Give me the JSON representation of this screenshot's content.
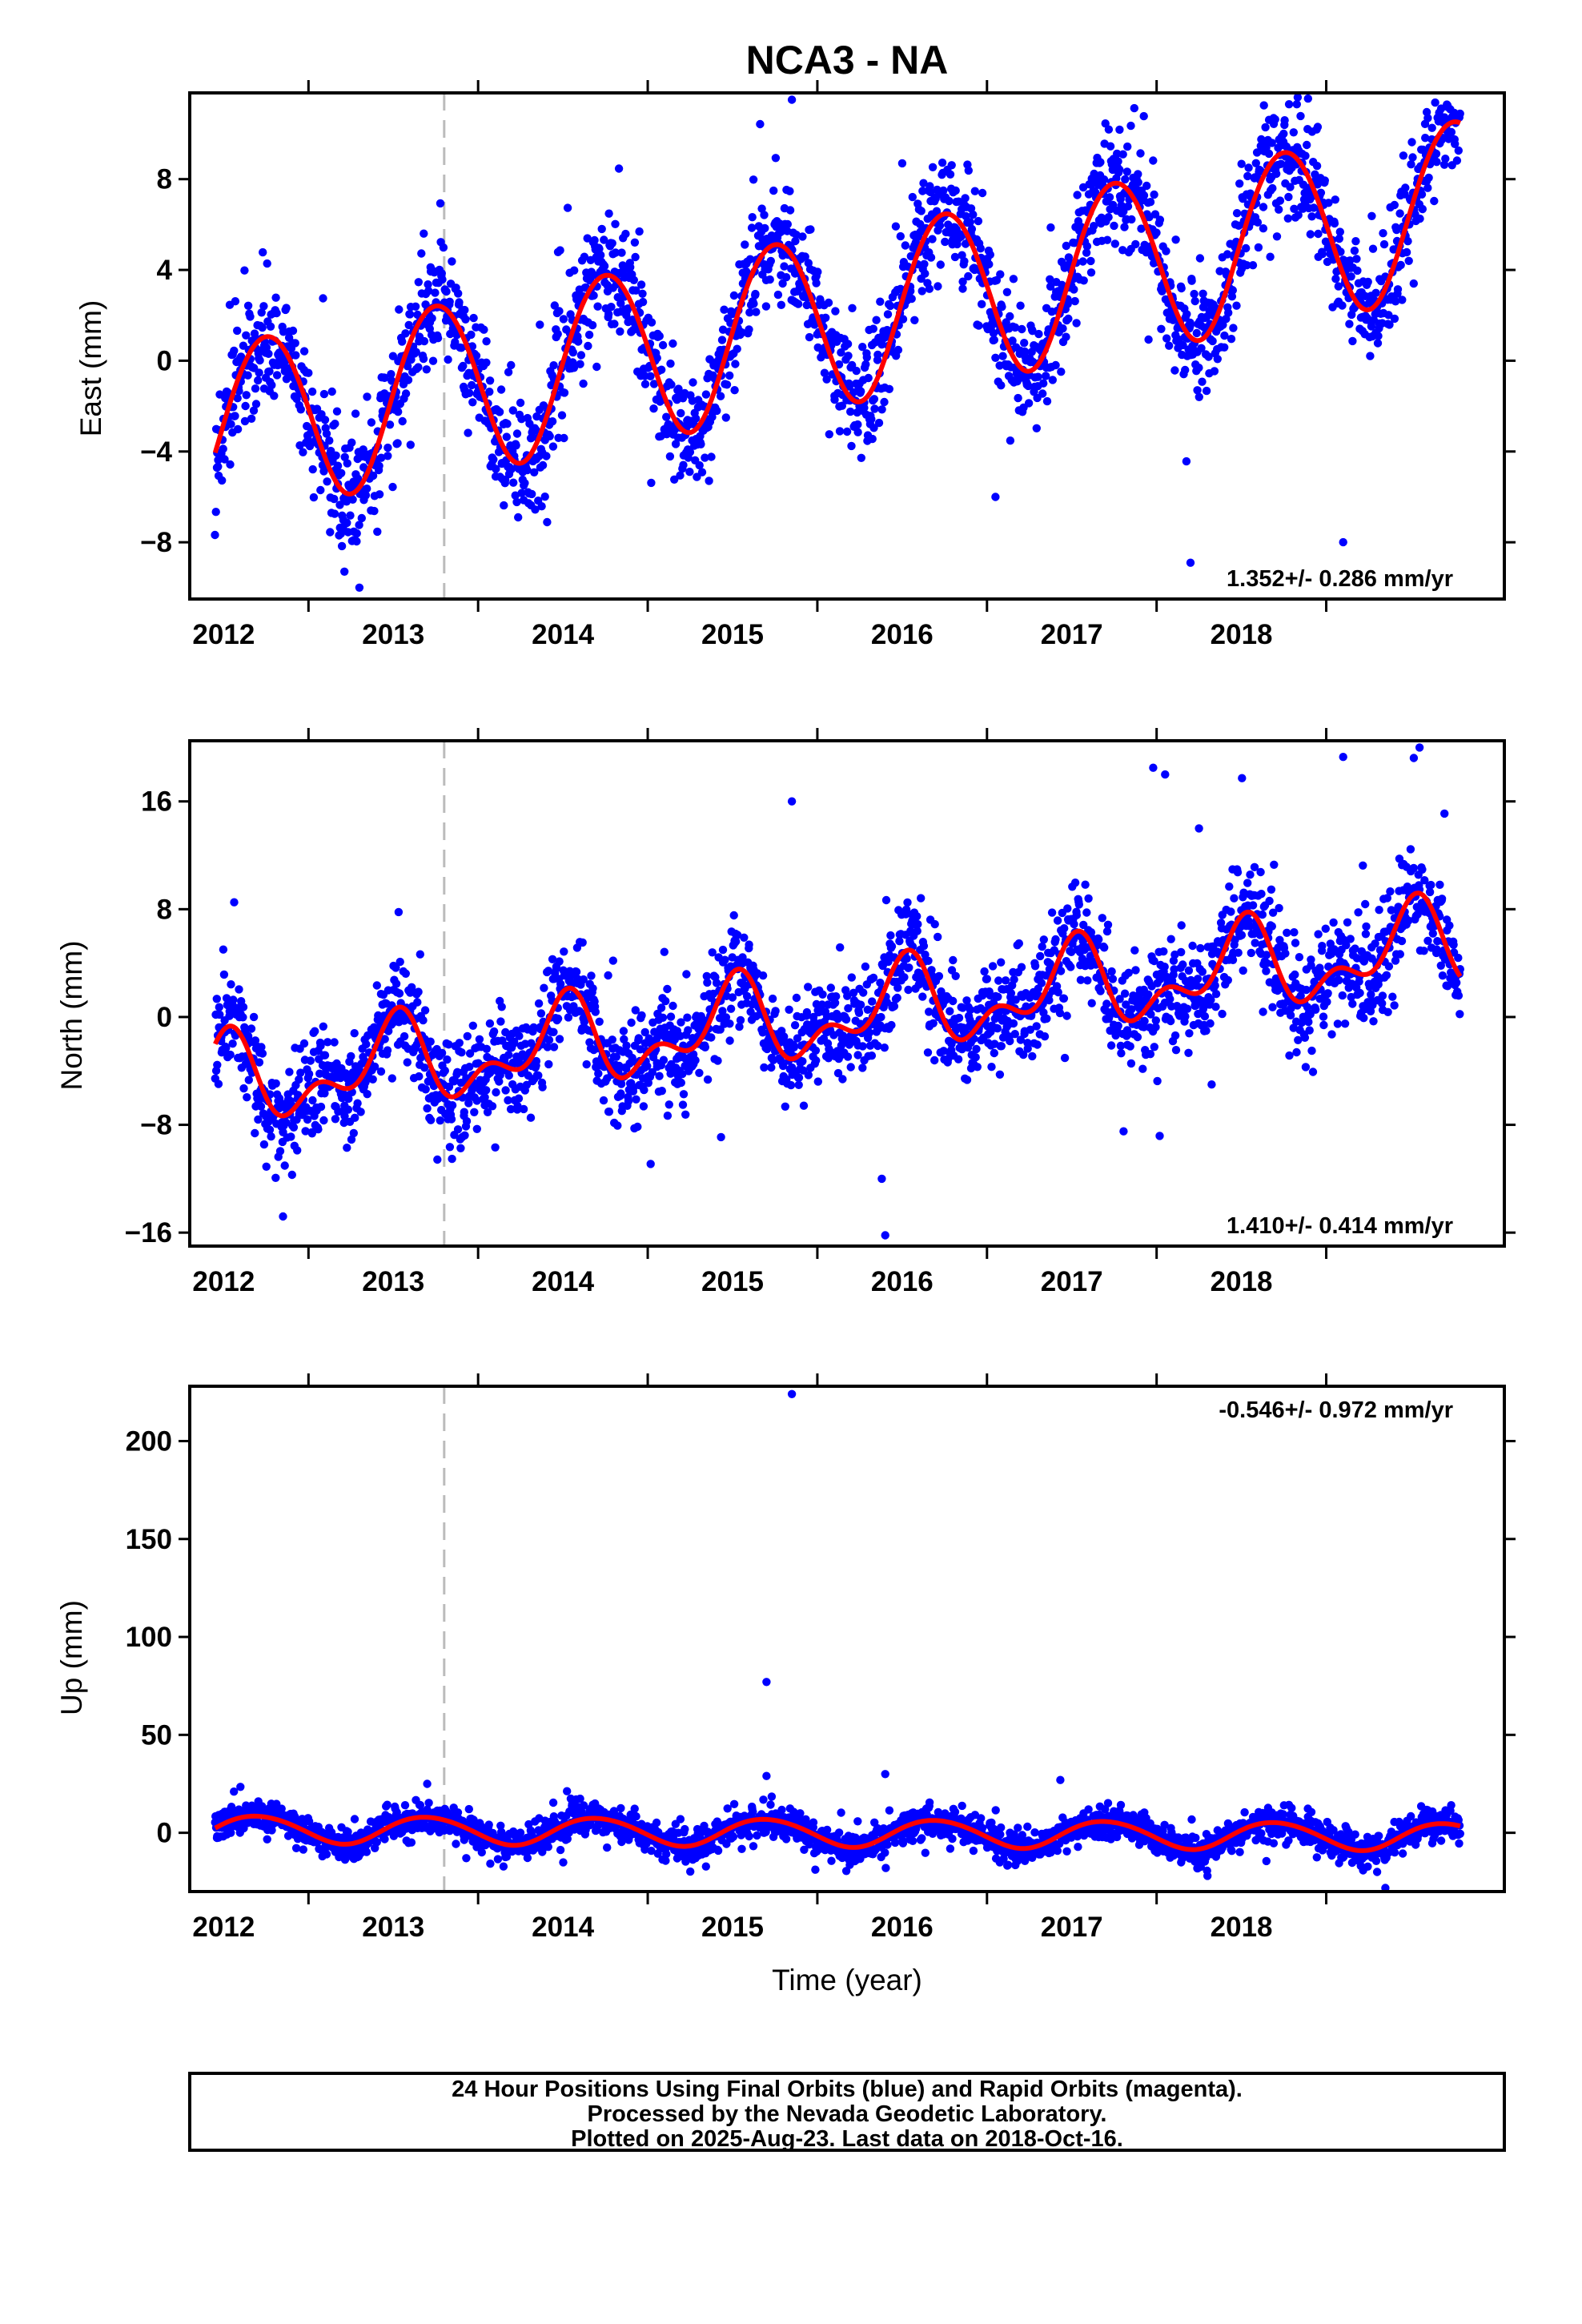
{
  "title": "NCA3 - NA",
  "colors": {
    "final_orbits": "#0000ff",
    "model_fit": "#ff0000",
    "event_line": "#bbbbbb",
    "frame": "#000000"
  },
  "footer": {
    "line1": "24 Hour Positions Using Final Orbits (blue) and Rapid Orbits (magenta).",
    "line2": "Processed by the Nevada Geodetic Laboratory.",
    "line3": "Plotted on 2025-Aug-23. Last data on 2018-Oct-16."
  },
  "chart_data": [
    {
      "type": "scatter",
      "component": "east",
      "ylabel": "East (mm)",
      "xlabel": "",
      "xlim": [
        2011.3,
        2019.05
      ],
      "ylim": [
        -10.5,
        11.8
      ],
      "xticks": [
        2012,
        2013,
        2014,
        2015,
        2016,
        2017,
        2018
      ],
      "yticks": [
        -8,
        -4,
        0,
        4,
        8
      ],
      "rate_text": "1.352+/- 0.286 mm/yr",
      "rate_position": "bottom-right",
      "event_line_x": 2012.8,
      "data_start": 2011.45,
      "data_end": 2018.79,
      "fit": {
        "offset": -3.0,
        "rate": 1.352,
        "annual_amp": 3.8,
        "annual_peak": 2011.75,
        "semiannual_amp": 0.15,
        "semiannual_peak": 2011.5
      },
      "noise_mm": 1.3,
      "n_points": 2400,
      "outliers": [
        {
          "x": 2014.85,
          "y": 11.5
        },
        {
          "x": 2015.5,
          "y": 8.7
        },
        {
          "x": 2016.05,
          "y": -6.0
        },
        {
          "x": 2017.2,
          "y": -8.9
        },
        {
          "x": 2017.95,
          "y": 10.3
        },
        {
          "x": 2018.1,
          "y": -8.0
        },
        {
          "x": 2012.3,
          "y": -10.0
        }
      ]
    },
    {
      "type": "scatter",
      "component": "north",
      "ylabel": "North (mm)",
      "xlabel": "",
      "xlim": [
        2011.3,
        2019.05
      ],
      "ylim": [
        -17,
        20.5
      ],
      "xticks": [
        2012,
        2013,
        2014,
        2015,
        2016,
        2017,
        2018
      ],
      "yticks": [
        -16,
        -8,
        0,
        8,
        16
      ],
      "rate_text": "1.410+/- 0.414 mm/yr",
      "rate_position": "bottom-right",
      "event_line_x": 2012.8,
      "data_start": 2011.45,
      "data_end": 2018.79,
      "fit": {
        "offset": -5.0,
        "rate": 1.41,
        "annual_amp": 2.6,
        "annual_peak": 2011.5,
        "semiannual_amp": 1.7,
        "semiannual_peak": 2011.55
      },
      "noise_mm": 1.9,
      "n_points": 2400,
      "outliers": [
        {
          "x": 2014.85,
          "y": 16.0
        },
        {
          "x": 2015.4,
          "y": -16.2
        },
        {
          "x": 2015.38,
          "y": -12.0
        },
        {
          "x": 2016.98,
          "y": 18.5
        },
        {
          "x": 2017.05,
          "y": 18.0
        },
        {
          "x": 2018.1,
          "y": 19.3
        },
        {
          "x": 2018.55,
          "y": 20.0
        },
        {
          "x": 2017.25,
          "y": 14.0
        },
        {
          "x": 2011.85,
          "y": -14.8
        }
      ]
    },
    {
      "type": "scatter",
      "component": "up",
      "ylabel": "Up (mm)",
      "xlabel": "Time (year)",
      "xlim": [
        2011.3,
        2019.05
      ],
      "ylim": [
        -30,
        228
      ],
      "xticks": [
        2012,
        2013,
        2014,
        2015,
        2016,
        2017,
        2018
      ],
      "yticks": [
        0,
        50,
        100,
        150,
        200
      ],
      "rate_text": "-0.546+/- 0.972 mm/yr",
      "rate_position": "top-right",
      "event_line_x": 2012.8,
      "data_start": 2011.45,
      "data_end": 2018.79,
      "fit": {
        "offset": 2.0,
        "rate": -0.546,
        "annual_amp": 7.0,
        "annual_peak": 2011.7,
        "semiannual_amp": 0.5,
        "semiannual_peak": 2011.5
      },
      "noise_mm": 4.0,
      "n_points": 2400,
      "outliers": [
        {
          "x": 2014.85,
          "y": 224
        },
        {
          "x": 2014.7,
          "y": 77
        },
        {
          "x": 2014.7,
          "y": 29
        },
        {
          "x": 2015.4,
          "y": 30
        },
        {
          "x": 2012.7,
          "y": 25
        },
        {
          "x": 2017.3,
          "y": -22
        },
        {
          "x": 2018.3,
          "y": -20
        }
      ]
    }
  ]
}
